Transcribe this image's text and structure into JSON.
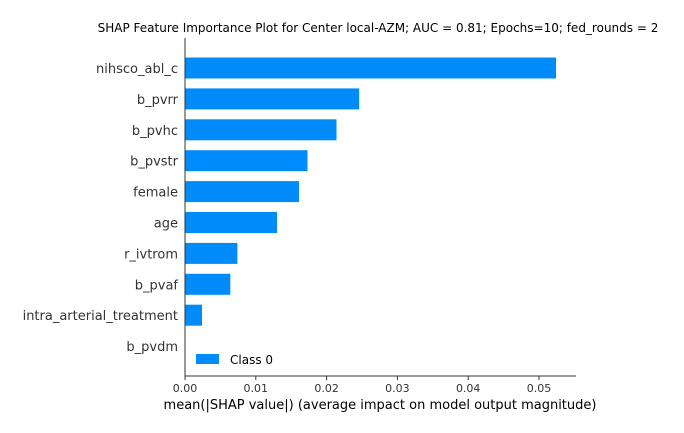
{
  "chart_data": {
    "type": "bar",
    "orientation": "horizontal",
    "title": "SHAP Feature Importance Plot for Center local-AZM; AUC = 0.81; Epochs=10; fed_rounds = 2",
    "xlabel": "mean(|SHAP value|) (average impact on model output magnitude)",
    "ylabel": "",
    "categories": [
      "nihsco_abl_c",
      "b_pvrr",
      "b_pvhc",
      "b_pvstr",
      "female",
      "age",
      "r_ivtrom",
      "b_pvaf",
      "intra_arterial_treatment",
      "b_pvdm"
    ],
    "series": [
      {
        "name": "Class 0",
        "color": "#008bfb",
        "values": [
          0.0524,
          0.0246,
          0.0214,
          0.0173,
          0.0161,
          0.013,
          0.0074,
          0.0064,
          0.0024,
          0.0
        ]
      }
    ],
    "xlim": [
      0,
      0.055
    ],
    "xticks": [
      "0.00",
      "0.01",
      "0.02",
      "0.03",
      "0.04",
      "0.05"
    ],
    "grid": false,
    "legend_position": "lower-left"
  }
}
